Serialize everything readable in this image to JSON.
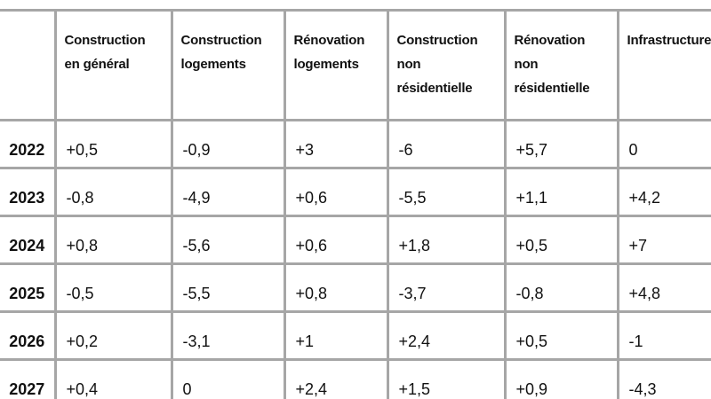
{
  "table": {
    "corner_label": "",
    "columns": [
      "Construction en général",
      "Construction logements",
      "Rénovation logements",
      "Construction non résidentielle",
      "Rénovation non résidentielle",
      "Infrastructure"
    ],
    "rows": [
      {
        "year": "2022",
        "values": [
          "+0,5",
          "-0,9",
          "+3",
          "-6",
          "+5,7",
          "0"
        ]
      },
      {
        "year": "2023",
        "values": [
          "-0,8",
          "-4,9",
          "+0,6",
          "-5,5",
          "+1,1",
          "+4,2"
        ]
      },
      {
        "year": "2024",
        "values": [
          "+0,8",
          "-5,6",
          "+0,6",
          "+1,8",
          "+0,5",
          "+7"
        ]
      },
      {
        "year": "2025",
        "values": [
          "-0,5",
          "-5,5",
          "+0,8",
          "-3,7",
          "-0,8",
          "+4,8"
        ]
      },
      {
        "year": "2026",
        "values": [
          "+0,2",
          "-3,1",
          "+1",
          "+2,4",
          "+0,5",
          "-1"
        ]
      },
      {
        "year": "2027",
        "values": [
          "+0,4",
          "0",
          "+2,4",
          "+1,5",
          "+0,9",
          "-4,3"
        ]
      }
    ]
  },
  "chart_data": {
    "type": "table",
    "categories": [
      "2022",
      "2023",
      "2024",
      "2025",
      "2026",
      "2027"
    ],
    "series": [
      {
        "name": "Construction en général",
        "values": [
          0.5,
          -0.8,
          0.8,
          -0.5,
          0.2,
          0.4
        ]
      },
      {
        "name": "Construction logements",
        "values": [
          -0.9,
          -4.9,
          -5.6,
          -5.5,
          -3.1,
          0
        ]
      },
      {
        "name": "Rénovation logements",
        "values": [
          3,
          0.6,
          0.6,
          0.8,
          1,
          2.4
        ]
      },
      {
        "name": "Construction non résidentielle",
        "values": [
          -6,
          -5.5,
          1.8,
          -3.7,
          2.4,
          1.5
        ]
      },
      {
        "name": "Rénovation non résidentielle",
        "values": [
          5.7,
          1.1,
          0.5,
          -0.8,
          0.5,
          0.9
        ]
      },
      {
        "name": "Infrastructure",
        "values": [
          0,
          4.2,
          7,
          4.8,
          -1,
          -4.3
        ]
      }
    ],
    "title": "",
    "xlabel": "",
    "ylabel": "",
    "notes": "values displayed with French decimal comma and explicit +/- signs; last column header clipped at right edge of image"
  },
  "colors": {
    "grid_border": "#a6a6a6",
    "header_separator": "#6e6e6e",
    "top_border": "#9c9c9c",
    "bottom_border": "#959595",
    "text": "#111111",
    "background": "#ffffff"
  }
}
